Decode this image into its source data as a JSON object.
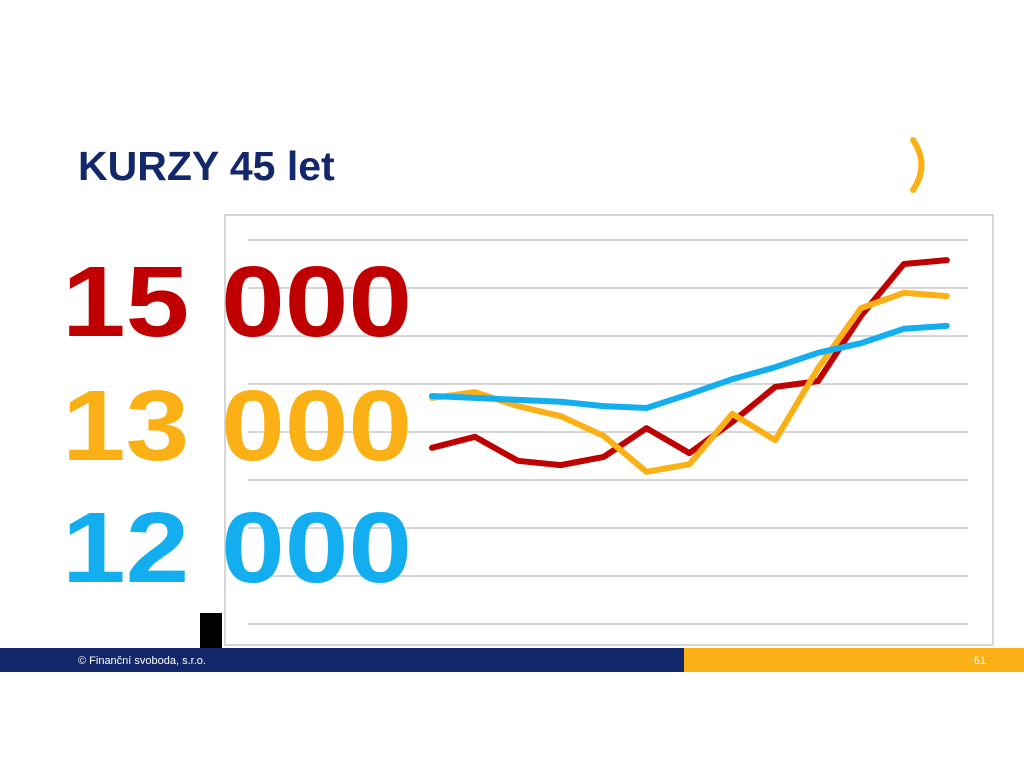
{
  "title": "KURZY 45 let",
  "footer": {
    "copyright": "© Finanční svoboda, s.r.o.",
    "page": "61"
  },
  "chart_data": {
    "type": "line",
    "categories": [
      null,
      null,
      null,
      null,
      null,
      null,
      null,
      null,
      null,
      null,
      null,
      null,
      null
    ],
    "ylim": [
      0,
      8
    ],
    "yticks": [
      0,
      1,
      2,
      3,
      4,
      5,
      6,
      7,
      8
    ],
    "grid": true,
    "series": [
      {
        "name": "15 000",
        "color": "#c00000",
        "values": [
          3.67,
          3.9,
          3.4,
          3.31,
          3.48,
          4.08,
          3.56,
          4.21,
          4.94,
          5.06,
          6.42,
          7.5,
          7.58
        ]
      },
      {
        "name": "13 000",
        "color": "#fbb116",
        "values": [
          4.71,
          4.83,
          4.54,
          4.33,
          3.92,
          3.17,
          3.33,
          4.38,
          3.83,
          5.33,
          6.58,
          6.9,
          6.83
        ]
      },
      {
        "name": "12 000",
        "color": "#12aef0",
        "values": [
          4.75,
          4.71,
          4.67,
          4.63,
          4.54,
          4.5,
          4.79,
          5.1,
          5.35,
          5.65,
          5.85,
          6.15,
          6.21
        ]
      }
    ]
  }
}
